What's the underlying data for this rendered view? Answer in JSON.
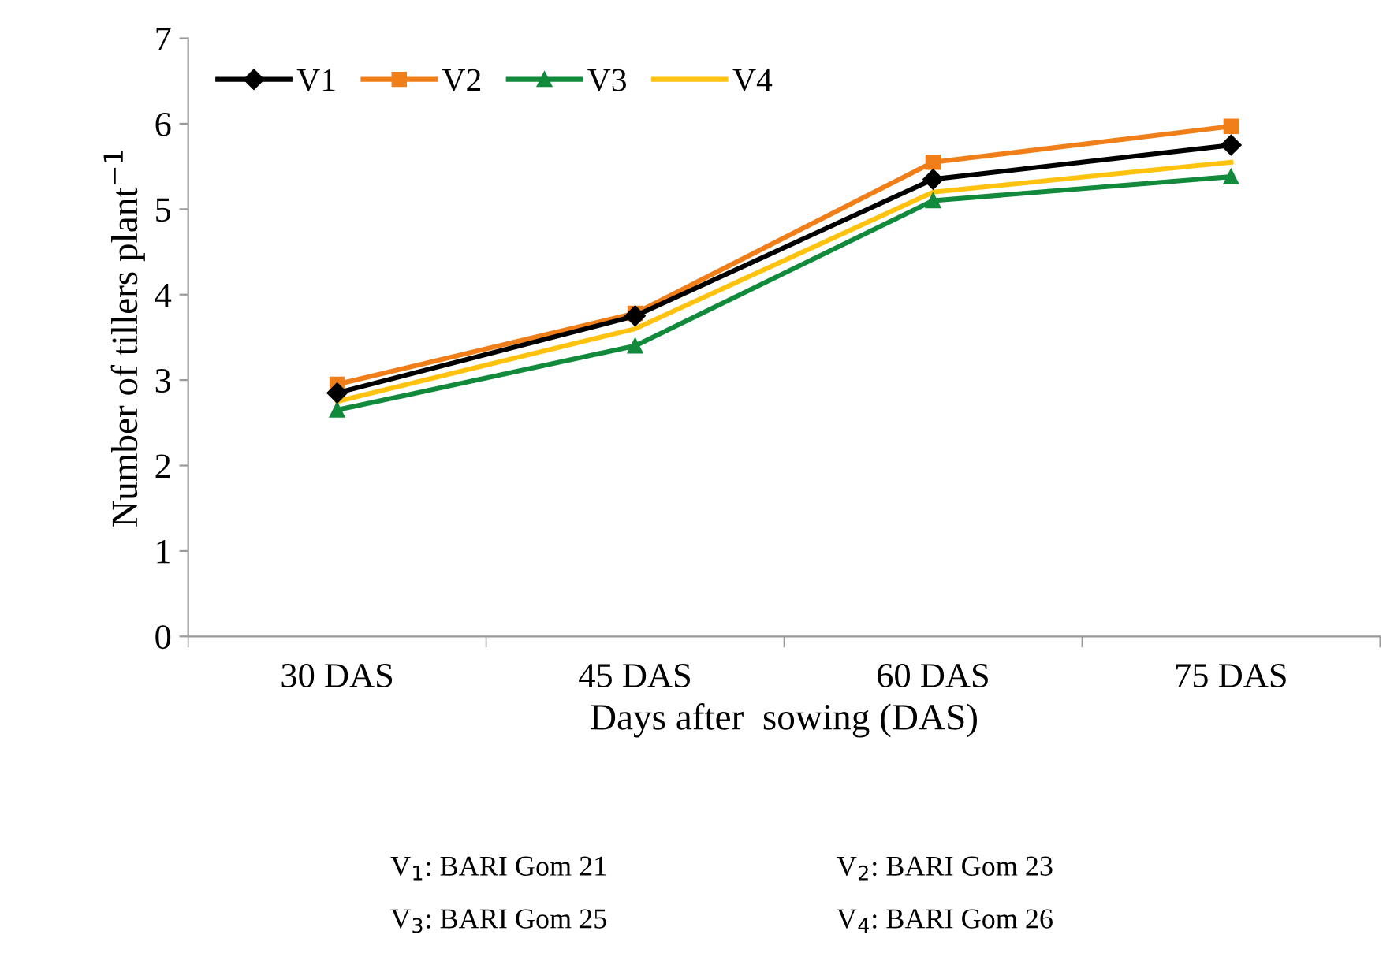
{
  "chart_data": {
    "type": "line",
    "xlabel": "Days after  sowing (DAS)",
    "ylabel": "Number of tillers plant$^{−1}$",
    "categories": [
      "30 DAS",
      "45 DAS",
      "60 DAS",
      "75 DAS"
    ],
    "series": [
      {
        "name": "V1",
        "color": "#000000",
        "marker": "diamond",
        "values": [
          2.85,
          3.75,
          5.35,
          5.75
        ]
      },
      {
        "name": "V2",
        "color": "#f07f1a",
        "marker": "square",
        "values": [
          2.95,
          3.78,
          5.55,
          5.97
        ]
      },
      {
        "name": "V3",
        "color": "#118a3c",
        "marker": "triangle",
        "values": [
          2.65,
          3.4,
          5.1,
          5.38
        ]
      },
      {
        "name": "V4",
        "color": "#ffc20e",
        "marker": "none",
        "values": [
          2.75,
          3.6,
          5.2,
          5.55
        ]
      }
    ],
    "ylim": [
      0,
      7
    ],
    "yticks": [
      0,
      1,
      2,
      3,
      4,
      5,
      6,
      7
    ],
    "grid": false,
    "legend": "top left",
    "line_style": "solid",
    "annotations": [
      "V$_{1}$: BARI Gom 21",
      "V$_{2}$: BARI Gom 23",
      "V$_{3}$: BARI Gom 25",
      "V$_{4}$: BARI Gom 26"
    ]
  }
}
